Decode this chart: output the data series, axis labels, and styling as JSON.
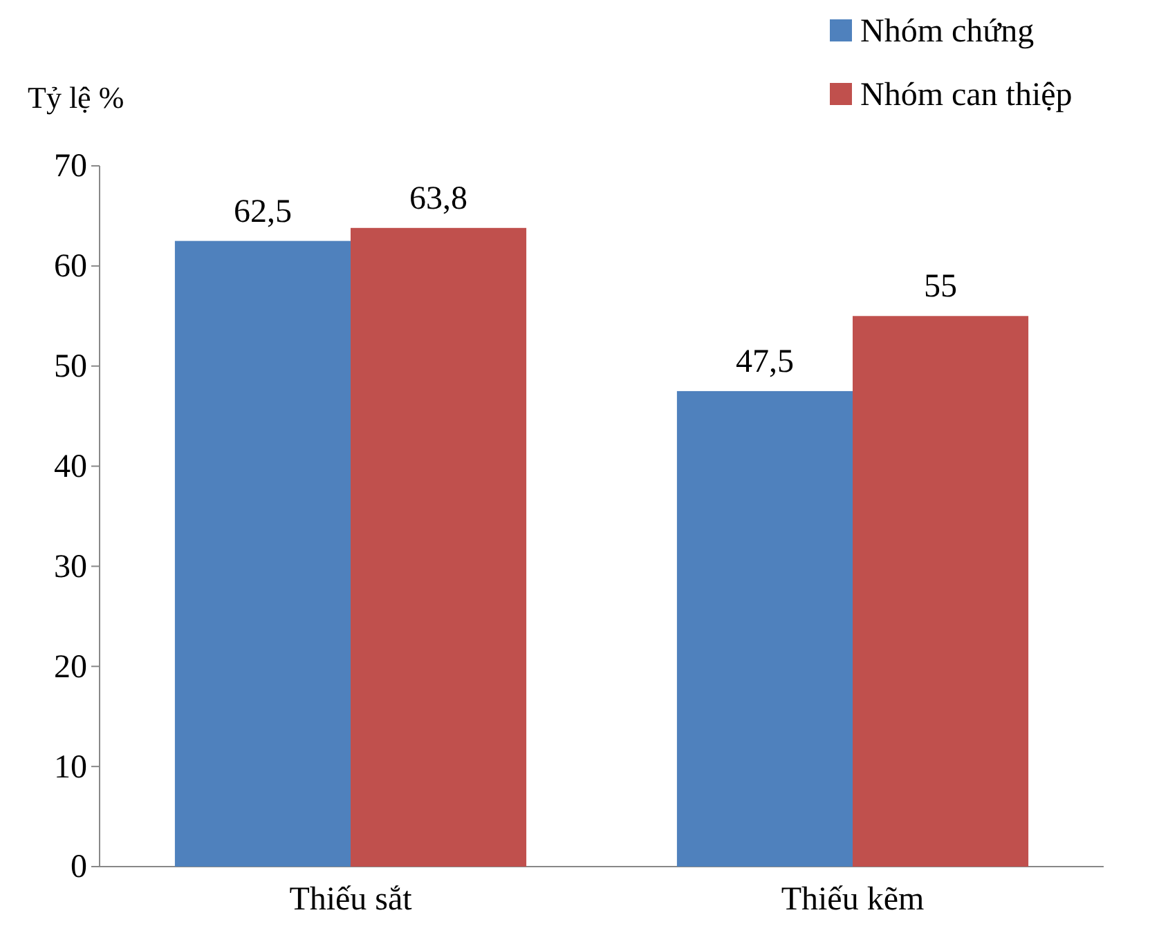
{
  "chart_data": {
    "type": "bar",
    "ylabel": "Tỷ lệ %",
    "categories": [
      "Thiếu sắt",
      "Thiếu kẽm"
    ],
    "series": [
      {
        "name": "Nhóm chứng",
        "color": "#4f81bd",
        "values": [
          62.5,
          47.5
        ],
        "value_labels": [
          "62,5",
          "47,5"
        ]
      },
      {
        "name": "Nhóm can thiệp",
        "color": "#c0504d",
        "values": [
          63.8,
          55
        ],
        "value_labels": [
          "63,8",
          "55"
        ]
      }
    ],
    "ylim": [
      0,
      70
    ],
    "yticks": [
      0,
      10,
      20,
      30,
      40,
      50,
      60,
      70
    ],
    "grid": false,
    "legend": "top right"
  }
}
